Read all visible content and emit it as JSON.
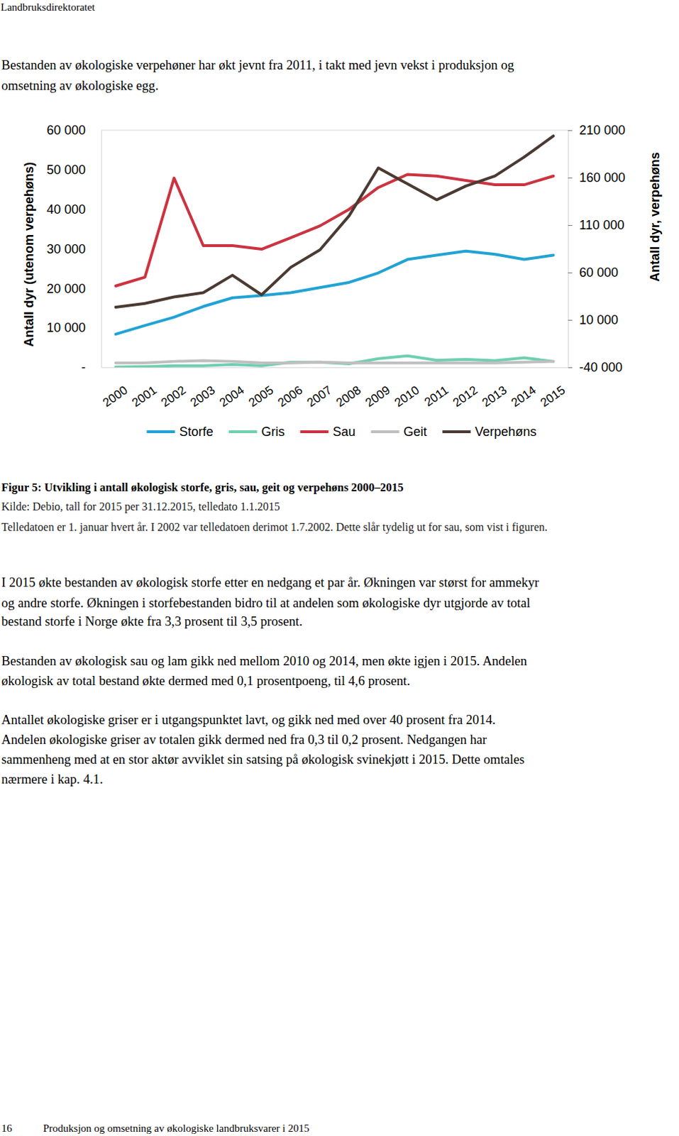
{
  "header": "Landbruksdirektoratet",
  "intro": [
    "Bestanden av økologiske verpehøner har økt jevnt fra 2011, i takt med jevn vekst i produksjon og",
    "omsetning av økologiske egg."
  ],
  "chart_data": {
    "type": "line",
    "y_label": "Antall dyr (utenom verpehøns)",
    "y2_label": "Antall dyr, verpehøns",
    "categories": [
      "2000",
      "2001",
      "2002",
      "2003",
      "2004",
      "2005",
      "2006",
      "2007",
      "2008",
      "2009",
      "2010",
      "2011",
      "2012",
      "2013",
      "2014",
      "2015"
    ],
    "ylim": [
      0,
      60000
    ],
    "yticks": [
      {
        "value": 0,
        "label": "-"
      },
      {
        "value": 10000,
        "label": "10 000"
      },
      {
        "value": 20000,
        "label": "20 000"
      },
      {
        "value": 30000,
        "label": "30 000"
      },
      {
        "value": 40000,
        "label": "40 000"
      },
      {
        "value": 50000,
        "label": "50 000"
      },
      {
        "value": 60000,
        "label": "60 000"
      }
    ],
    "y2lim": [
      -40000,
      210000
    ],
    "y2ticks": [
      {
        "value": -40000,
        "label": "-40 000"
      },
      {
        "value": 10000,
        "label": "10 000"
      },
      {
        "value": 60000,
        "label": "60 000"
      },
      {
        "value": 110000,
        "label": "110 000"
      },
      {
        "value": 160000,
        "label": "160 000"
      },
      {
        "value": 210000,
        "label": "210 000"
      }
    ],
    "grid": false,
    "legend": "bottom",
    "series": [
      {
        "name": "Storfe",
        "color": "#22a3d4",
        "values": [
          8400,
          10600,
          12700,
          15400,
          17600,
          18200,
          18900,
          20200,
          21500,
          23900,
          27300,
          28400,
          29400,
          28600,
          27300,
          28400
        ]
      },
      {
        "name": "Gris",
        "color": "#6fcfb1",
        "values": [
          100,
          200,
          400,
          400,
          700,
          400,
          1300,
          1300,
          900,
          2200,
          2900,
          1800,
          2000,
          1700,
          2400,
          1500
        ]
      },
      {
        "name": "Sau",
        "color": "#cc3340",
        "values": [
          20600,
          22800,
          47900,
          30800,
          30800,
          29900,
          32800,
          35800,
          40000,
          45500,
          48800,
          48400,
          47300,
          46200,
          46200,
          48400
        ]
      },
      {
        "name": "Geit",
        "color": "#bfbfbf",
        "values": [
          1100,
          1100,
          1500,
          1700,
          1500,
          1100,
          1100,
          1300,
          1100,
          1100,
          1100,
          1100,
          1100,
          1100,
          1300,
          1500
        ]
      },
      {
        "name": "Verpehøns",
        "color": "#4a3a32",
        "axis": "y2",
        "values": [
          23500,
          27300,
          34200,
          38700,
          57100,
          36500,
          65500,
          83900,
          119800,
          170200,
          153400,
          136600,
          151100,
          161800,
          181700,
          203900
        ]
      }
    ]
  },
  "caption": {
    "title": "Figur 5: Utvikling i antall økologisk storfe, gris, sau, geit og verpehøns 2000–2015",
    "lines": [
      "Kilde: Debio, tall for 2015 per 31.12.2015, telledato 1.1.2015",
      "Telledatoen er 1. januar hvert år. I 2002 var telledatoen derimot 1.7.2002. Dette slår tydelig ut for sau, som vist i figuren."
    ]
  },
  "paragraphs": [
    [
      "I 2015 økte bestanden av økologisk storfe etter en nedgang et par år. Økningen var størst for ammekyr",
      "og andre storfe. Økningen i storfebestanden bidro til at andelen som økologiske dyr utgjorde av total",
      "bestand storfe i Norge økte fra 3,3 prosent til 3,5 prosent."
    ],
    [
      "Bestanden av økologisk sau og lam gikk ned mellom 2010 og 2014, men økte igjen i 2015. Andelen",
      "økologisk av total bestand økte dermed med 0,1 prosentpoeng, til 4,6 prosent."
    ],
    [
      "Antallet økologiske griser er i utgangspunktet lavt, og gikk ned med over 40 prosent fra 2014.",
      "Andelen økologiske griser av totalen gikk dermed ned fra 0,3 til 0,2 prosent. Nedgangen har",
      "sammenheng med at en stor aktør avviklet sin satsing på økologisk svinekjøtt i 2015. Dette omtales",
      "nærmere i kap. 4.1."
    ]
  ],
  "footer": {
    "page": "16",
    "text": "Produksjon og omsetning av økologiske landbruksvarer i 2015"
  }
}
